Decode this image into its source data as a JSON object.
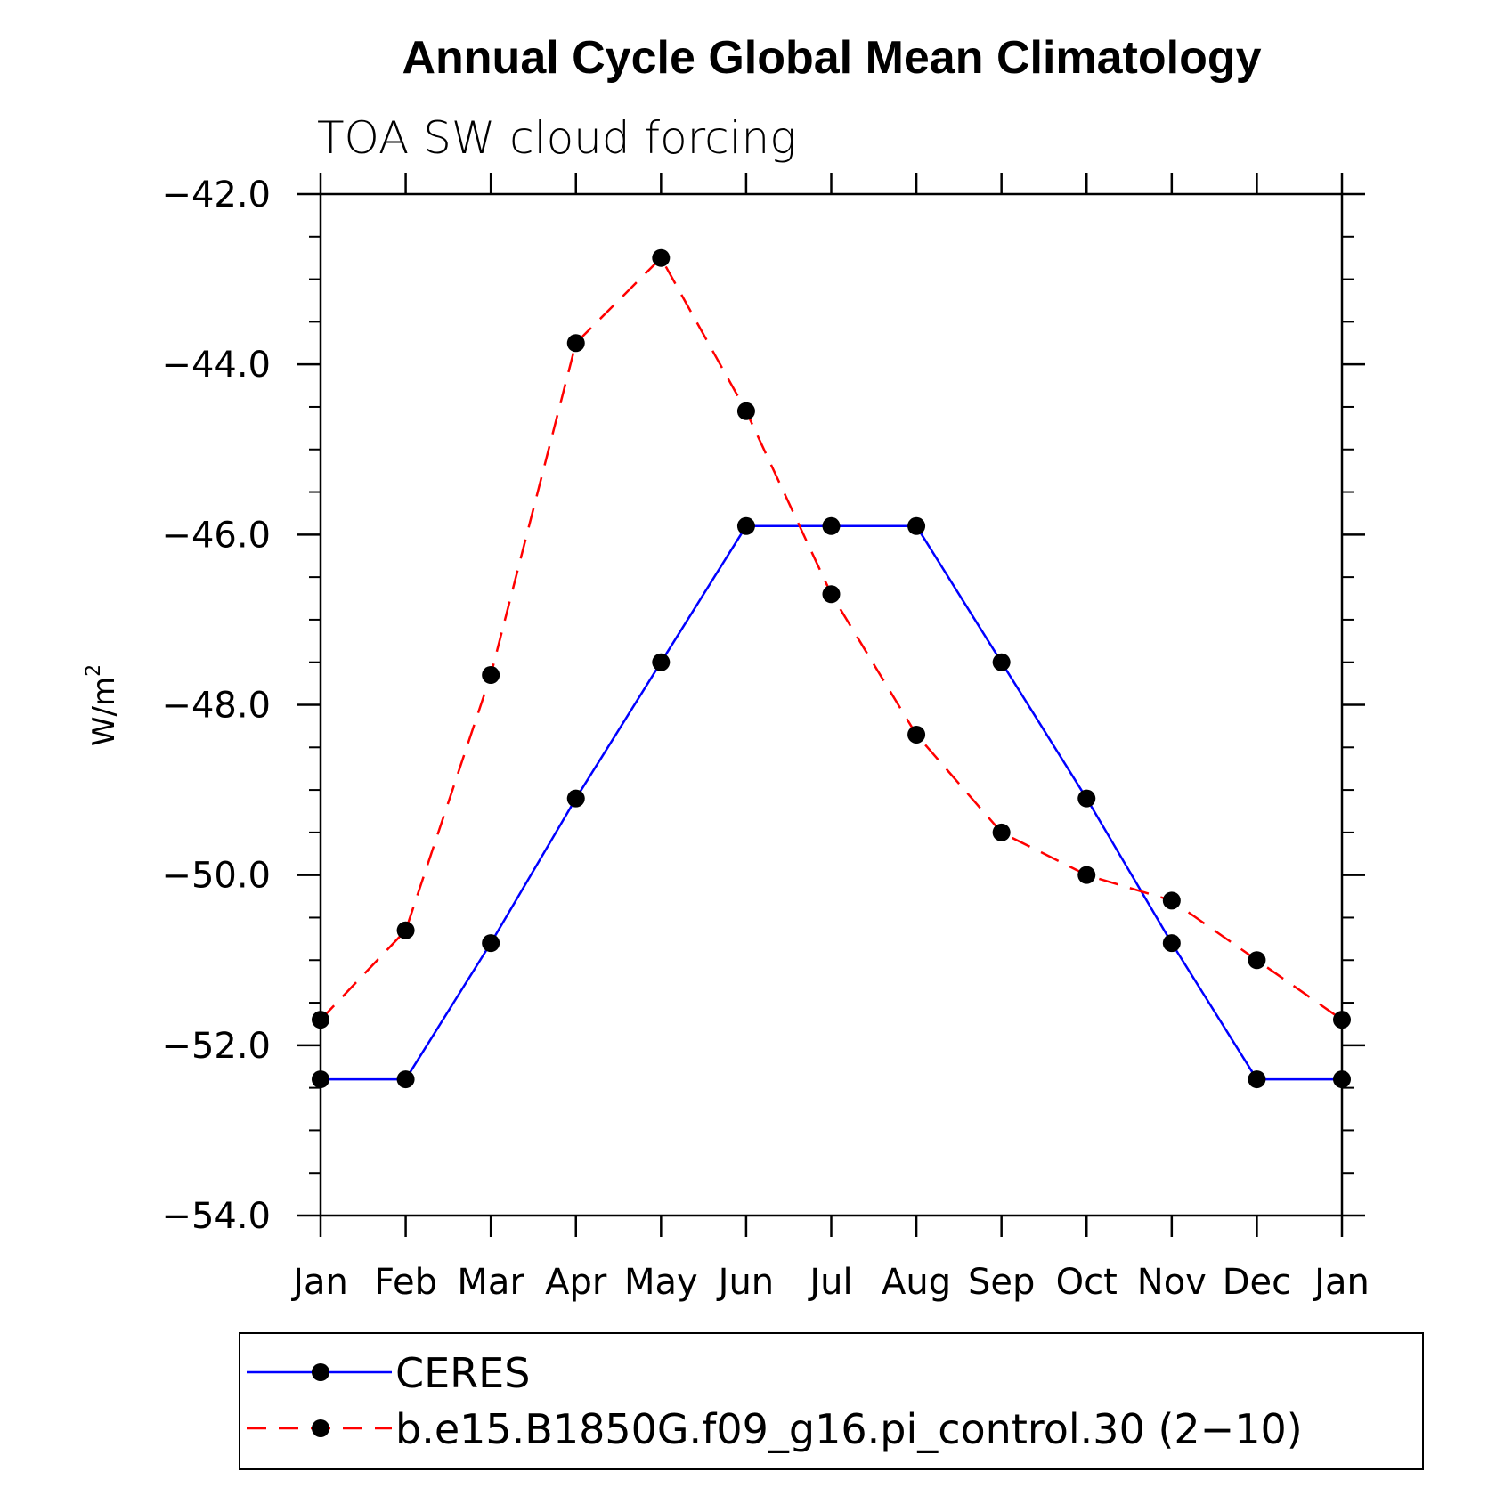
{
  "chart_data": {
    "type": "line",
    "title": "Annual Cycle Global Mean Climatology",
    "subtitle": "TOA SW cloud forcing",
    "ylabel": "W/m",
    "ylabel_sup": "2",
    "xlabel": "",
    "categories": [
      "Jan",
      "Feb",
      "Mar",
      "Apr",
      "May",
      "Jun",
      "Jul",
      "Aug",
      "Sep",
      "Oct",
      "Nov",
      "Dec",
      "Jan"
    ],
    "ylim": [
      -54.0,
      -42.0
    ],
    "yticks": [
      "-42.0",
      "-44.0",
      "-46.0",
      "-48.0",
      "-50.0",
      "-52.0",
      "-54.0"
    ],
    "grid": false,
    "legend_position": "bottom",
    "series": [
      {
        "name": "CERES",
        "color": "#0000ff",
        "dash": "solid",
        "marker": "filled-circle",
        "values": [
          -52.4,
          -52.4,
          -50.8,
          -49.1,
          -47.5,
          -45.9,
          -45.9,
          -45.9,
          -47.5,
          -49.1,
          -50.8,
          -52.4,
          -52.4
        ]
      },
      {
        "name": "b.e15.B1850G.f09_g16.pi_control.30 (2−10)",
        "color": "#ff0000",
        "dash": "dashed",
        "marker": "filled-circle",
        "values": [
          -51.7,
          -50.65,
          -47.65,
          -43.75,
          -42.75,
          -44.55,
          -46.7,
          -48.35,
          -49.5,
          -50.0,
          -50.3,
          -51.0,
          -51.7
        ]
      }
    ]
  }
}
